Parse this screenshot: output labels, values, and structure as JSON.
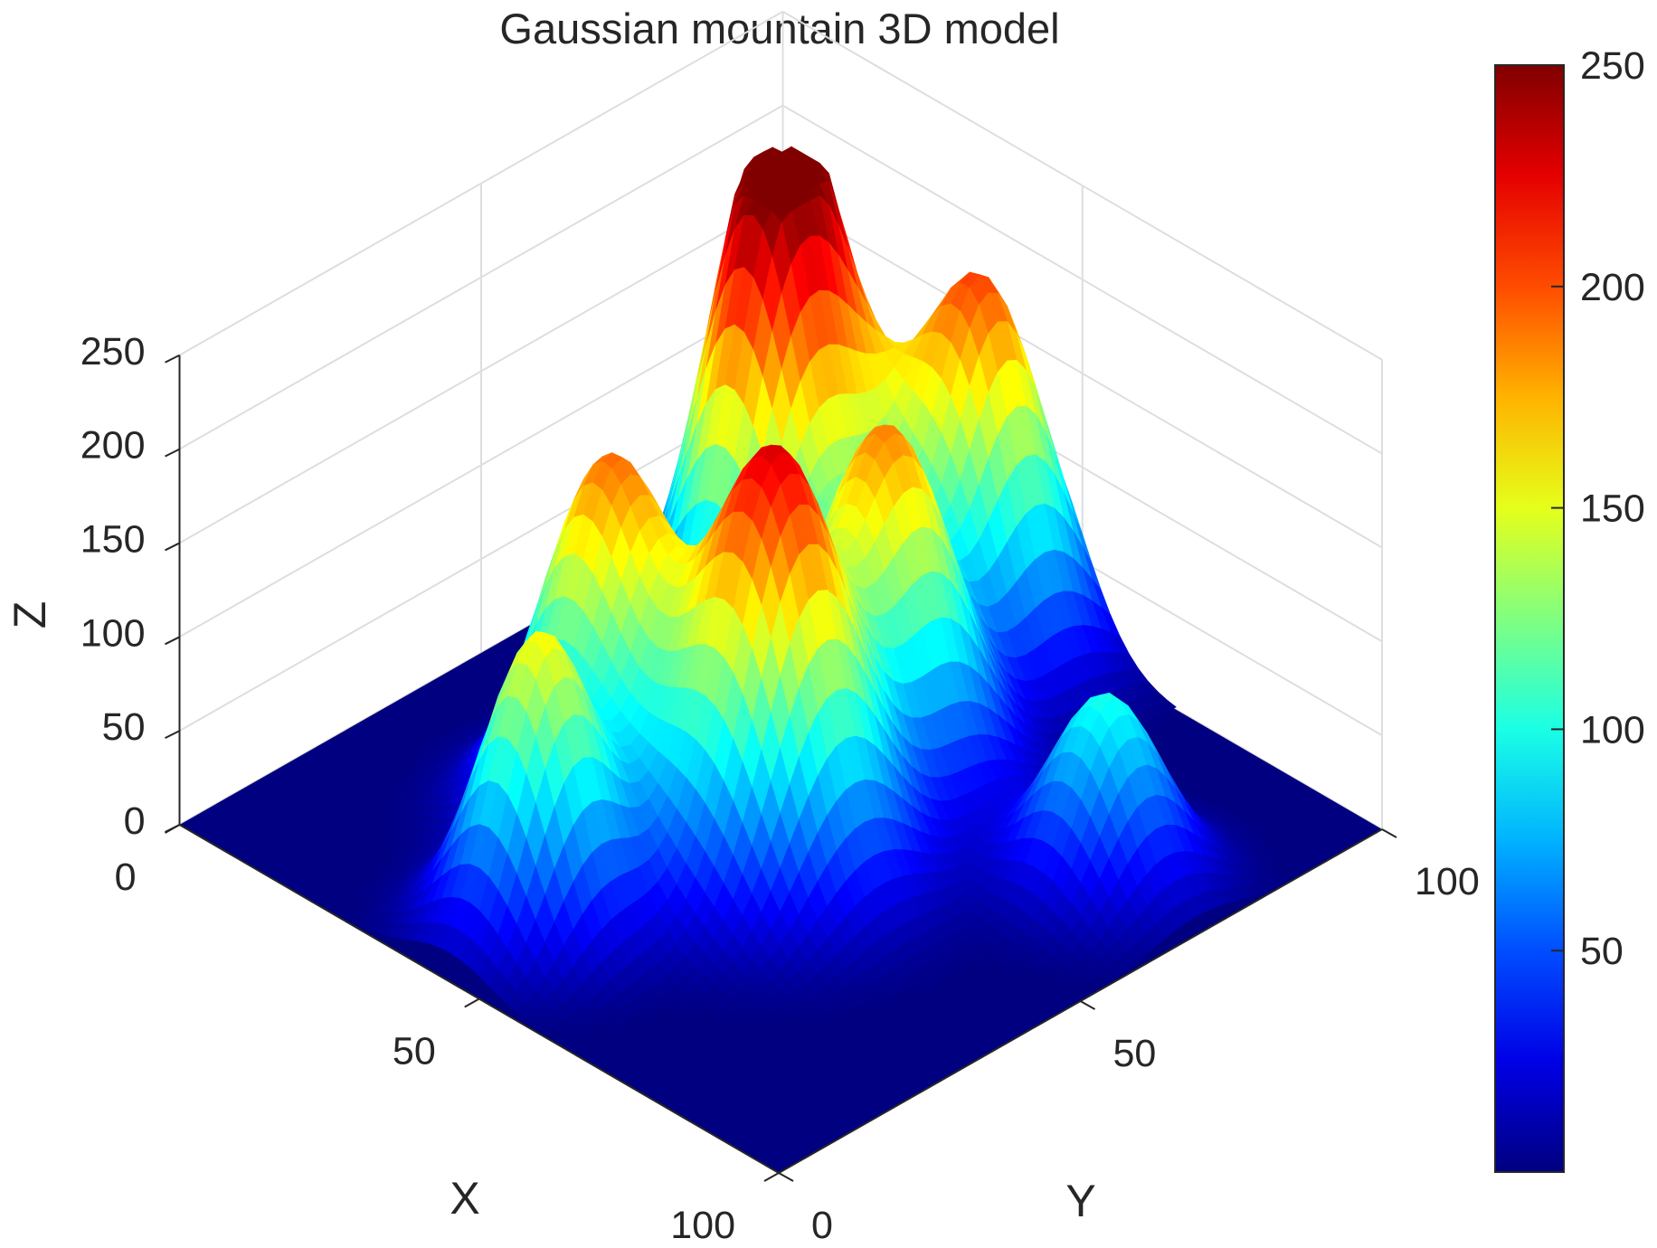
{
  "chart_data": {
    "type": "surface3d",
    "title": "Gaussian mountain 3D model",
    "xlabel": "X",
    "ylabel": "Y",
    "zlabel": "Z",
    "xlim": [
      0,
      100
    ],
    "ylim": [
      0,
      100
    ],
    "zlim": [
      0,
      250
    ],
    "x_ticks": [
      0,
      50,
      100
    ],
    "y_ticks": [
      0,
      50,
      100
    ],
    "z_ticks": [
      0,
      50,
      100,
      150,
      200,
      250
    ],
    "colormap": "jet",
    "colorbar": {
      "range": [
        0,
        250
      ],
      "ticks": [
        50,
        100,
        150,
        200,
        250
      ],
      "location": "right"
    },
    "grid": true,
    "peaks": [
      {
        "x": 45,
        "y": 15,
        "height": 155,
        "spread": 7
      },
      {
        "x": 34,
        "y": 37,
        "height": 185,
        "spread": 8
      },
      {
        "x": 28,
        "y": 70,
        "height": 190,
        "spread": 8
      },
      {
        "x": 21,
        "y": 80,
        "height": 210,
        "spread": 8
      },
      {
        "x": 57,
        "y": 42,
        "height": 225,
        "spread": 9
      },
      {
        "x": 52,
        "y": 66,
        "height": 180,
        "spread": 8
      },
      {
        "x": 42,
        "y": 91,
        "height": 200,
        "spread": 8
      },
      {
        "x": 85,
        "y": 69,
        "height": 100,
        "spread": 7
      }
    ]
  }
}
